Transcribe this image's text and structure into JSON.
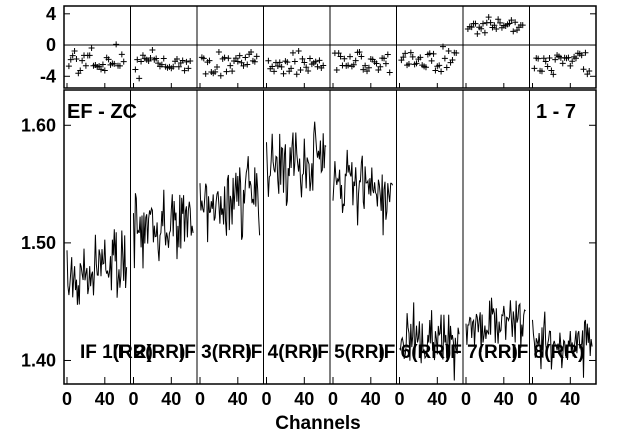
{
  "chart_data": {
    "type": "line",
    "title": "",
    "baseline_label": "EF - ZC",
    "range_label": "1 - 7",
    "xlabel": "Channels",
    "x_ticks": [
      0,
      40
    ],
    "x_tick_labels": [
      "0",
      "40"
    ],
    "x_channels_per_panel": 64,
    "top_panel": {
      "yrange": [
        -5.5,
        5
      ],
      "y_ticks": [
        4,
        0,
        -4
      ],
      "y_tick_labels": [
        "4",
        "0",
        "-4"
      ],
      "series_type": "scatter",
      "marker": "plus"
    },
    "bottom_panel": {
      "yrange": [
        1.38,
        1.63
      ],
      "y_ticks": [
        1.6,
        1.5,
        1.4
      ],
      "y_tick_labels": [
        "1.60",
        "1.50",
        "1.40"
      ]
    },
    "series": [
      {
        "name": "IF 1(RR)",
        "amp_mean": 1.48,
        "amp_noise": 0.022,
        "amp_trend": 0.012,
        "phase_mean": -2.0,
        "phase_noise": 1.2
      },
      {
        "name": "IF 2(RR)",
        "amp_mean": 1.515,
        "amp_noise": 0.022,
        "amp_trend": 0.01,
        "phase_mean": -2.6,
        "phase_noise": 1.0
      },
      {
        "name": "IF 3(RR)",
        "amp_mean": 1.535,
        "amp_noise": 0.02,
        "amp_trend": 0.015,
        "phase_mean": -2.5,
        "phase_noise": 1.1
      },
      {
        "name": "IF 4(RR)",
        "amp_mean": 1.57,
        "amp_noise": 0.022,
        "amp_trend": 0.006,
        "phase_mean": -2.6,
        "phase_noise": 1.0
      },
      {
        "name": "IF 5(RR)",
        "amp_mean": 1.545,
        "amp_noise": 0.02,
        "amp_trend": -0.01,
        "phase_mean": -2.2,
        "phase_noise": 1.1
      },
      {
        "name": "IF 6(RR)",
        "amp_mean": 1.415,
        "amp_noise": 0.018,
        "amp_trend": 0.0,
        "phase_mean": -2.0,
        "phase_noise": 1.0
      },
      {
        "name": "IF 7(RR)",
        "amp_mean": 1.435,
        "amp_noise": 0.018,
        "amp_trend": 0.0,
        "phase_mean": 2.3,
        "phase_noise": 0.9
      },
      {
        "name": "IF 8(RR)",
        "amp_mean": 1.415,
        "amp_noise": 0.018,
        "amp_trend": 0.0,
        "phase_mean": -2.4,
        "phase_noise": 1.0
      }
    ]
  }
}
